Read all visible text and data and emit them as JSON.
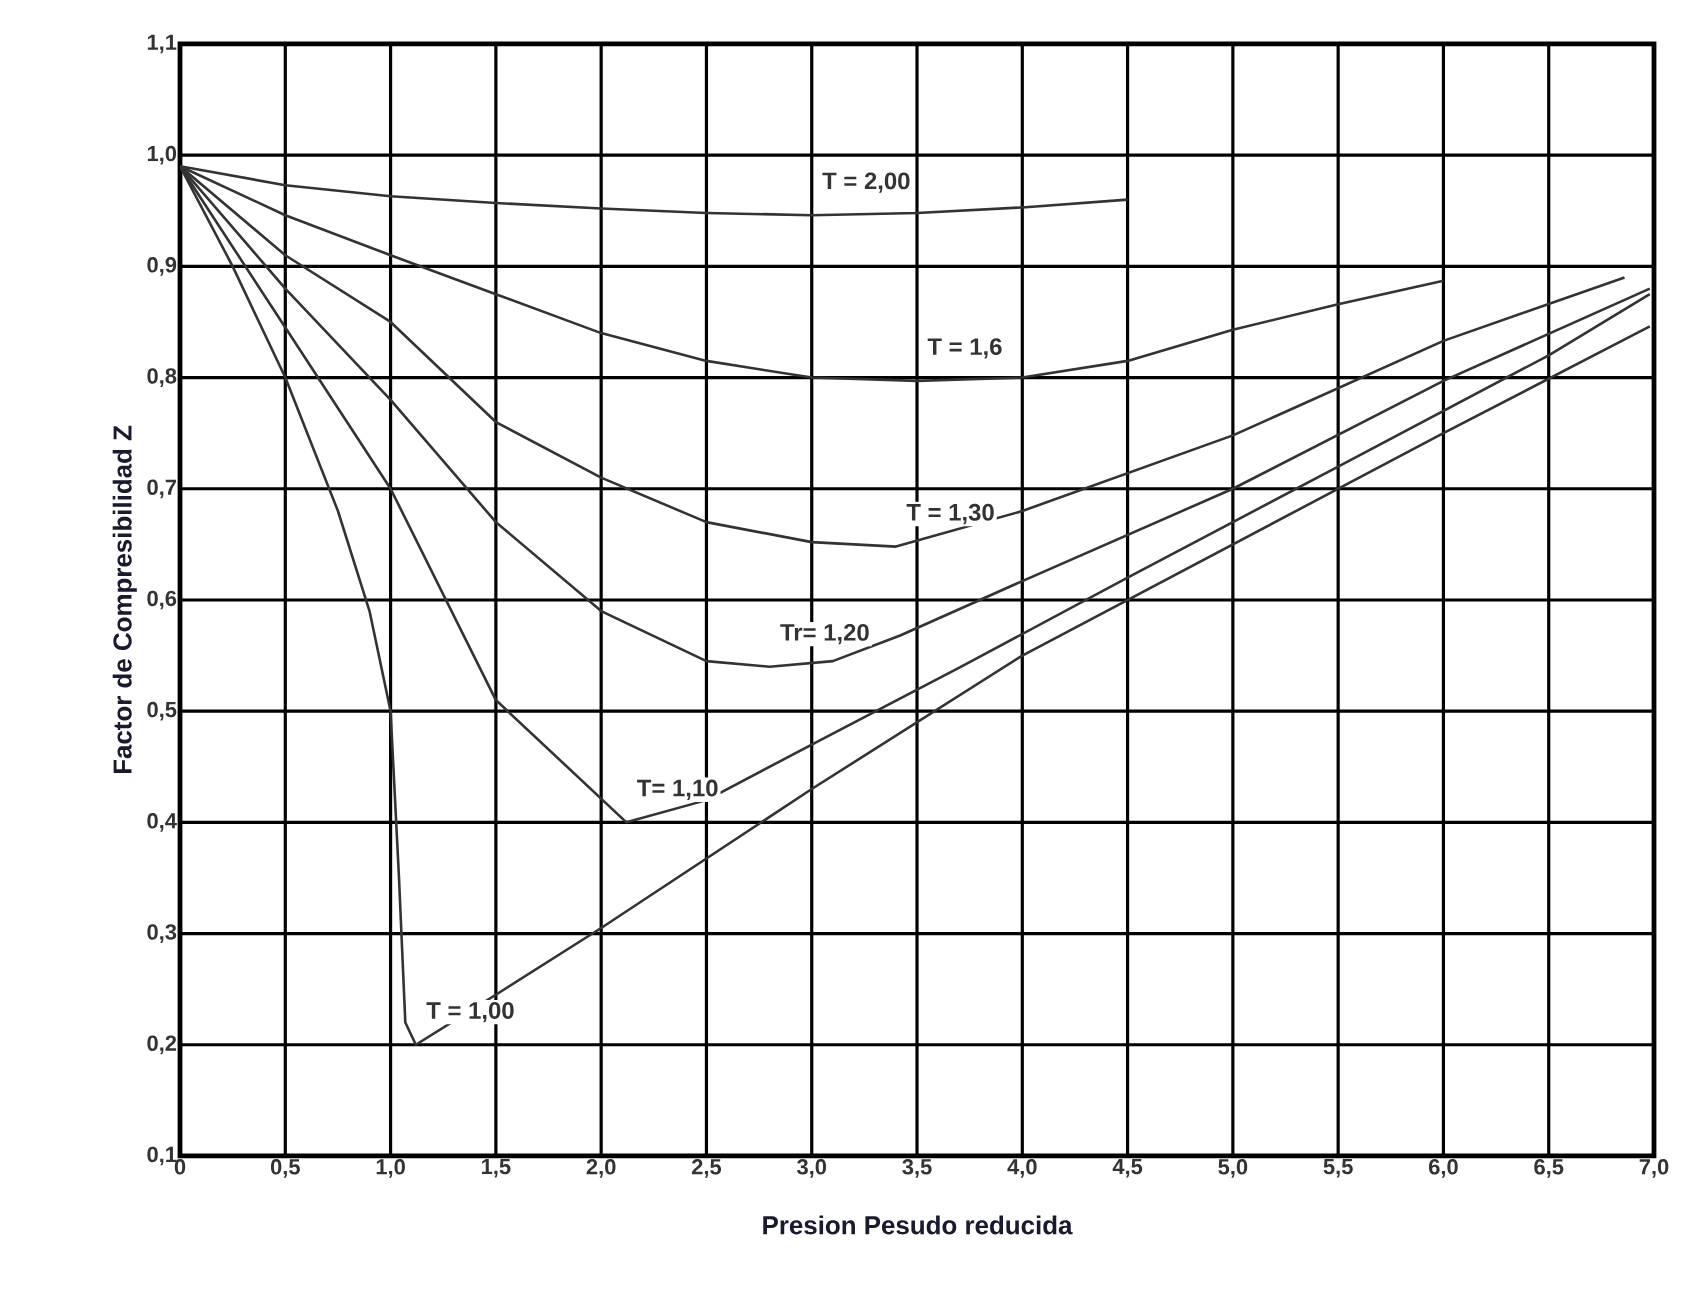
{
  "chart_data": {
    "type": "line",
    "xlabel": "Presion Pesudo reducida",
    "ylabel": "Factor de Compresibilidad Z",
    "xlim": [
      0,
      7
    ],
    "ylim": [
      0.1,
      1.1
    ],
    "grid": true,
    "marker": "none",
    "line_style": "solid",
    "xticks": [
      0,
      {
        "value": 0.5,
        "label": "0,5"
      },
      {
        "value": 1,
        "label": "1,0"
      },
      {
        "value": 1.5,
        "label": "1,5"
      },
      {
        "value": 2,
        "label": "2,0"
      },
      {
        "value": 2.5,
        "label": "2,5"
      },
      {
        "value": 3,
        "label": "3,0"
      },
      {
        "value": 3.5,
        "label": "3,5"
      },
      {
        "value": 4,
        "label": "4,0"
      },
      {
        "value": 4.5,
        "label": "4,5"
      },
      {
        "value": 5,
        "label": "5,0"
      },
      {
        "value": 5.5,
        "label": "5,5"
      },
      {
        "value": 6,
        "label": "6,0"
      },
      {
        "value": 6.5,
        "label": "6,5"
      },
      {
        "value": 7,
        "label": "7,0"
      }
    ],
    "yticks": [
      {
        "value": 0.1,
        "label": "0,1"
      },
      {
        "value": 0.2,
        "label": "0,2"
      },
      {
        "value": 0.3,
        "label": "0,3"
      },
      {
        "value": 0.4,
        "label": "0,4"
      },
      {
        "value": 0.5,
        "label": "0,5"
      },
      {
        "value": 0.6,
        "label": "0,6"
      },
      {
        "value": 0.7,
        "label": "0,7"
      },
      {
        "value": 0.8,
        "label": "0,8"
      },
      {
        "value": 0.9,
        "label": "0,9"
      },
      {
        "value": 1,
        "label": "1,0"
      },
      {
        "value": 1.1,
        "label": "1,1"
      }
    ],
    "series": [
      {
        "name": "T = 2,00",
        "color": "#333333",
        "x": [
          0,
          0.5,
          1,
          1.5,
          2,
          2.5,
          3,
          3.5,
          4,
          4.5
        ],
        "values": [
          0.99,
          0.973,
          0.963,
          0.957,
          0.952,
          0.948,
          0.946,
          0.948,
          0.953,
          0.96
        ]
      },
      {
        "name": "T = 1,6",
        "color": "#333333",
        "x": [
          0,
          0.5,
          1,
          1.5,
          2,
          2.5,
          3,
          3.5,
          4,
          4.5,
          5,
          5.5,
          6
        ],
        "values": [
          0.99,
          0.946,
          0.91,
          0.875,
          0.84,
          0.815,
          0.8,
          0.797,
          0.8,
          0.815,
          0.843,
          0.866,
          0.887
        ]
      },
      {
        "name": "T = 1,30",
        "color": "#333333",
        "x": [
          0,
          0.5,
          1,
          1.5,
          2,
          2.5,
          3,
          3.4,
          4,
          5,
          6,
          6.86
        ],
        "values": [
          0.99,
          0.91,
          0.85,
          0.76,
          0.71,
          0.67,
          0.652,
          0.648,
          0.68,
          0.748,
          0.833,
          0.89
        ]
      },
      {
        "name": "Tr= 1,20",
        "color": "#333333",
        "x": [
          0,
          0.5,
          1,
          1.5,
          2,
          2.5,
          2.8,
          3.1,
          3.42,
          4,
          5,
          6,
          6.98
        ],
        "values": [
          0.99,
          0.88,
          0.78,
          0.67,
          0.59,
          0.545,
          0.54,
          0.545,
          0.568,
          0.617,
          0.7,
          0.797,
          0.88
        ]
      },
      {
        "name": "T= 1,10",
        "color": "#333333",
        "x": [
          0,
          0.5,
          1,
          1.5,
          2.12,
          2.5,
          3,
          3.71,
          4.5,
          5,
          5.5,
          6,
          6.5,
          6.98
        ],
        "values": [
          0.99,
          0.845,
          0.7,
          0.51,
          0.4,
          0.42,
          0.47,
          0.54,
          0.62,
          0.67,
          0.72,
          0.77,
          0.82,
          0.875
        ]
      },
      {
        "name": "T = 1,00",
        "color": "#333333",
        "x": [
          0,
          0.25,
          0.5,
          0.75,
          0.9,
          1,
          1.04,
          1.07,
          1.12,
          1.5,
          2,
          3,
          4,
          5,
          6,
          6.98
        ],
        "values": [
          0.99,
          0.9,
          0.8,
          0.68,
          0.59,
          0.5,
          0.35,
          0.22,
          0.2,
          0.245,
          0.305,
          0.43,
          0.55,
          0.65,
          0.75,
          0.846
        ]
      }
    ]
  }
}
